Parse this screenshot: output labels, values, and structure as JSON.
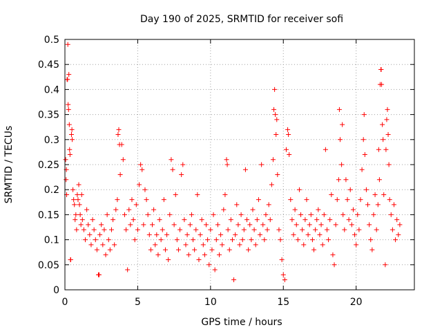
{
  "chart_data": {
    "type": "scatter",
    "title": "Day 190 of 2025, SRMTID for receiver sofi",
    "xlabel": "GPS time / hours",
    "ylabel": "SRMTID / TECUs",
    "xlim": [
      0,
      24
    ],
    "ylim": [
      0,
      0.5
    ],
    "x_ticks": [
      0,
      5,
      10,
      15,
      20
    ],
    "x_tick_labels": [
      "0",
      "5",
      "10",
      "15",
      "20"
    ],
    "y_ticks": [
      0,
      0.05,
      0.1,
      0.15,
      0.2,
      0.25,
      0.3,
      0.35,
      0.4,
      0.45,
      0.5
    ],
    "y_tick_labels": [
      "0",
      "0.05",
      "0.1",
      "0.15",
      "0.2",
      "0.25",
      "0.3",
      "0.35",
      "0.4",
      "0.45",
      "0.5"
    ],
    "grid": true,
    "marker": "+",
    "series": [
      {
        "name": "SRMTID",
        "color": "#ff0000",
        "points": [
          [
            0.05,
            0.26
          ],
          [
            0.08,
            0.22
          ],
          [
            0.1,
            0.24
          ],
          [
            0.12,
            0.19
          ],
          [
            0.15,
            0.42
          ],
          [
            0.18,
            0.42
          ],
          [
            0.2,
            0.49
          ],
          [
            0.22,
            0.37
          ],
          [
            0.25,
            0.36
          ],
          [
            0.27,
            0.43
          ],
          [
            0.3,
            0.33
          ],
          [
            0.32,
            0.28
          ],
          [
            0.35,
            0.27
          ],
          [
            0.38,
            0.06
          ],
          [
            0.4,
            0.06
          ],
          [
            0.45,
            0.31
          ],
          [
            0.48,
            0.32
          ],
          [
            0.5,
            0.3
          ],
          [
            0.55,
            0.2
          ],
          [
            0.6,
            0.18
          ],
          [
            0.65,
            0.17
          ],
          [
            0.7,
            0.14
          ],
          [
            0.75,
            0.15
          ],
          [
            0.8,
            0.12
          ],
          [
            0.85,
            0.19
          ],
          [
            0.9,
            0.18
          ],
          [
            0.95,
            0.21
          ],
          [
            1.0,
            0.17
          ],
          [
            1.05,
            0.15
          ],
          [
            1.1,
            0.13
          ],
          [
            1.15,
            0.19
          ],
          [
            1.2,
            0.14
          ],
          [
            1.3,
            0.12
          ],
          [
            1.4,
            0.1
          ],
          [
            1.5,
            0.16
          ],
          [
            1.6,
            0.13
          ],
          [
            1.7,
            0.11
          ],
          [
            1.8,
            0.09
          ],
          [
            1.9,
            0.14
          ],
          [
            2.0,
            0.12
          ],
          [
            2.1,
            0.1
          ],
          [
            2.2,
            0.08
          ],
          [
            2.3,
            0.03
          ],
          [
            2.35,
            0.03
          ],
          [
            2.4,
            0.11
          ],
          [
            2.5,
            0.13
          ],
          [
            2.6,
            0.09
          ],
          [
            2.7,
            0.12
          ],
          [
            2.8,
            0.07
          ],
          [
            2.9,
            0.15
          ],
          [
            3.0,
            0.1
          ],
          [
            3.1,
            0.08
          ],
          [
            3.2,
            0.12
          ],
          [
            3.3,
            0.14
          ],
          [
            3.4,
            0.09
          ],
          [
            3.5,
            0.16
          ],
          [
            3.6,
            0.18
          ],
          [
            3.65,
            0.31
          ],
          [
            3.7,
            0.32
          ],
          [
            3.75,
            0.29
          ],
          [
            3.8,
            0.23
          ],
          [
            3.9,
            0.29
          ],
          [
            4.0,
            0.26
          ],
          [
            4.1,
            0.15
          ],
          [
            4.2,
            0.12
          ],
          [
            4.3,
            0.04
          ],
          [
            4.4,
            0.16
          ],
          [
            4.5,
            0.13
          ],
          [
            4.6,
            0.18
          ],
          [
            4.7,
            0.14
          ],
          [
            4.8,
            0.1
          ],
          [
            4.9,
            0.17
          ],
          [
            5.0,
            0.12
          ],
          [
            5.1,
            0.21
          ],
          [
            5.2,
            0.25
          ],
          [
            5.3,
            0.24
          ],
          [
            5.4,
            0.13
          ],
          [
            5.5,
            0.2
          ],
          [
            5.6,
            0.18
          ],
          [
            5.7,
            0.15
          ],
          [
            5.8,
            0.11
          ],
          [
            5.9,
            0.08
          ],
          [
            6.0,
            0.13
          ],
          [
            6.1,
            0.16
          ],
          [
            6.2,
            0.09
          ],
          [
            6.3,
            0.11
          ],
          [
            6.4,
            0.07
          ],
          [
            6.5,
            0.14
          ],
          [
            6.6,
            0.1
          ],
          [
            6.7,
            0.12
          ],
          [
            6.8,
            0.18
          ],
          [
            6.9,
            0.08
          ],
          [
            7.0,
            0.11
          ],
          [
            7.1,
            0.06
          ],
          [
            7.2,
            0.15
          ],
          [
            7.3,
            0.26
          ],
          [
            7.4,
            0.24
          ],
          [
            7.5,
            0.13
          ],
          [
            7.6,
            0.19
          ],
          [
            7.7,
            0.1
          ],
          [
            7.8,
            0.08
          ],
          [
            7.9,
            0.12
          ],
          [
            8.0,
            0.23
          ],
          [
            8.1,
            0.25
          ],
          [
            8.2,
            0.14
          ],
          [
            8.3,
            0.09
          ],
          [
            8.4,
            0.11
          ],
          [
            8.5,
            0.07
          ],
          [
            8.6,
            0.13
          ],
          [
            8.7,
            0.15
          ],
          [
            8.8,
            0.1
          ],
          [
            8.9,
            0.08
          ],
          [
            9.0,
            0.12
          ],
          [
            9.1,
            0.19
          ],
          [
            9.2,
            0.06
          ],
          [
            9.3,
            0.11
          ],
          [
            9.4,
            0.14
          ],
          [
            9.5,
            0.09
          ],
          [
            9.6,
            0.07
          ],
          [
            9.7,
            0.13
          ],
          [
            9.8,
            0.1
          ],
          [
            9.9,
            0.05
          ],
          [
            10.0,
            0.12
          ],
          [
            10.1,
            0.08
          ],
          [
            10.2,
            0.15
          ],
          [
            10.3,
            0.04
          ],
          [
            10.4,
            0.1
          ],
          [
            10.5,
            0.13
          ],
          [
            10.6,
            0.07
          ],
          [
            10.7,
            0.11
          ],
          [
            10.8,
            0.09
          ],
          [
            10.9,
            0.16
          ],
          [
            11.0,
            0.19
          ],
          [
            11.1,
            0.26
          ],
          [
            11.15,
            0.25
          ],
          [
            11.2,
            0.12
          ],
          [
            11.3,
            0.08
          ],
          [
            11.4,
            0.14
          ],
          [
            11.5,
            0.1
          ],
          [
            11.6,
            0.02
          ],
          [
            11.7,
            0.11
          ],
          [
            11.8,
            0.17
          ],
          [
            11.9,
            0.13
          ],
          [
            12.0,
            0.09
          ],
          [
            12.1,
            0.15
          ],
          [
            12.2,
            0.1
          ],
          [
            12.3,
            0.12
          ],
          [
            12.4,
            0.24
          ],
          [
            12.5,
            0.14
          ],
          [
            12.6,
            0.08
          ],
          [
            12.7,
            0.13
          ],
          [
            12.8,
            0.1
          ],
          [
            12.9,
            0.16
          ],
          [
            13.0,
            0.12
          ],
          [
            13.1,
            0.09
          ],
          [
            13.2,
            0.14
          ],
          [
            13.3,
            0.18
          ],
          [
            13.4,
            0.11
          ],
          [
            13.5,
            0.25
          ],
          [
            13.6,
            0.13
          ],
          [
            13.7,
            0.1
          ],
          [
            13.8,
            0.15
          ],
          [
            13.9,
            0.12
          ],
          [
            14.0,
            0.17
          ],
          [
            14.1,
            0.14
          ],
          [
            14.2,
            0.21
          ],
          [
            14.3,
            0.26
          ],
          [
            14.35,
            0.36
          ],
          [
            14.4,
            0.4
          ],
          [
            14.45,
            0.35
          ],
          [
            14.5,
            0.31
          ],
          [
            14.55,
            0.34
          ],
          [
            14.6,
            0.23
          ],
          [
            14.7,
            0.12
          ],
          [
            14.8,
            0.1
          ],
          [
            14.9,
            0.06
          ],
          [
            15.0,
            0.03
          ],
          [
            15.1,
            0.02
          ],
          [
            15.2,
            0.28
          ],
          [
            15.3,
            0.32
          ],
          [
            15.35,
            0.31
          ],
          [
            15.4,
            0.27
          ],
          [
            15.5,
            0.18
          ],
          [
            15.6,
            0.14
          ],
          [
            15.7,
            0.11
          ],
          [
            15.8,
            0.16
          ],
          [
            15.9,
            0.13
          ],
          [
            16.0,
            0.1
          ],
          [
            16.1,
            0.2
          ],
          [
            16.2,
            0.15
          ],
          [
            16.3,
            0.12
          ],
          [
            16.4,
            0.09
          ],
          [
            16.5,
            0.14
          ],
          [
            16.6,
            0.18
          ],
          [
            16.7,
            0.11
          ],
          [
            16.8,
            0.13
          ],
          [
            16.9,
            0.15
          ],
          [
            17.0,
            0.1
          ],
          [
            17.1,
            0.08
          ],
          [
            17.2,
            0.12
          ],
          [
            17.3,
            0.14
          ],
          [
            17.4,
            0.16
          ],
          [
            17.5,
            0.11
          ],
          [
            17.6,
            0.13
          ],
          [
            17.7,
            0.09
          ],
          [
            17.8,
            0.15
          ],
          [
            17.9,
            0.28
          ],
          [
            18.0,
            0.12
          ],
          [
            18.1,
            0.1
          ],
          [
            18.2,
            0.14
          ],
          [
            18.3,
            0.19
          ],
          [
            18.4,
            0.07
          ],
          [
            18.5,
            0.05
          ],
          [
            18.6,
            0.13
          ],
          [
            18.7,
            0.18
          ],
          [
            18.8,
            0.22
          ],
          [
            18.85,
            0.36
          ],
          [
            18.9,
            0.3
          ],
          [
            19.0,
            0.25
          ],
          [
            19.05,
            0.33
          ],
          [
            19.1,
            0.15
          ],
          [
            19.2,
            0.12
          ],
          [
            19.3,
            0.22
          ],
          [
            19.4,
            0.18
          ],
          [
            19.5,
            0.14
          ],
          [
            19.6,
            0.2
          ],
          [
            19.7,
            0.13
          ],
          [
            19.8,
            0.16
          ],
          [
            19.9,
            0.11
          ],
          [
            20.0,
            0.09
          ],
          [
            20.1,
            0.15
          ],
          [
            20.2,
            0.12
          ],
          [
            20.3,
            0.18
          ],
          [
            20.4,
            0.24
          ],
          [
            20.5,
            0.3
          ],
          [
            20.55,
            0.35
          ],
          [
            20.6,
            0.27
          ],
          [
            20.7,
            0.2
          ],
          [
            20.8,
            0.17
          ],
          [
            20.9,
            0.13
          ],
          [
            21.0,
            0.1
          ],
          [
            21.1,
            0.08
          ],
          [
            21.2,
            0.15
          ],
          [
            21.3,
            0.19
          ],
          [
            21.4,
            0.12
          ],
          [
            21.5,
            0.17
          ],
          [
            21.55,
            0.28
          ],
          [
            21.6,
            0.22
          ],
          [
            21.65,
            0.41
          ],
          [
            21.7,
            0.44
          ],
          [
            21.72,
            0.44
          ],
          [
            21.75,
            0.41
          ],
          [
            21.8,
            0.33
          ],
          [
            21.85,
            0.3
          ],
          [
            21.9,
            0.19
          ],
          [
            22.0,
            0.05
          ],
          [
            22.05,
            0.28
          ],
          [
            22.1,
            0.34
          ],
          [
            22.15,
            0.36
          ],
          [
            22.2,
            0.31
          ],
          [
            22.25,
            0.25
          ],
          [
            22.3,
            0.18
          ],
          [
            22.4,
            0.15
          ],
          [
            22.5,
            0.12
          ],
          [
            22.6,
            0.17
          ],
          [
            22.7,
            0.1
          ],
          [
            22.8,
            0.14
          ],
          [
            22.9,
            0.11
          ],
          [
            23.0,
            0.13
          ]
        ]
      }
    ]
  }
}
